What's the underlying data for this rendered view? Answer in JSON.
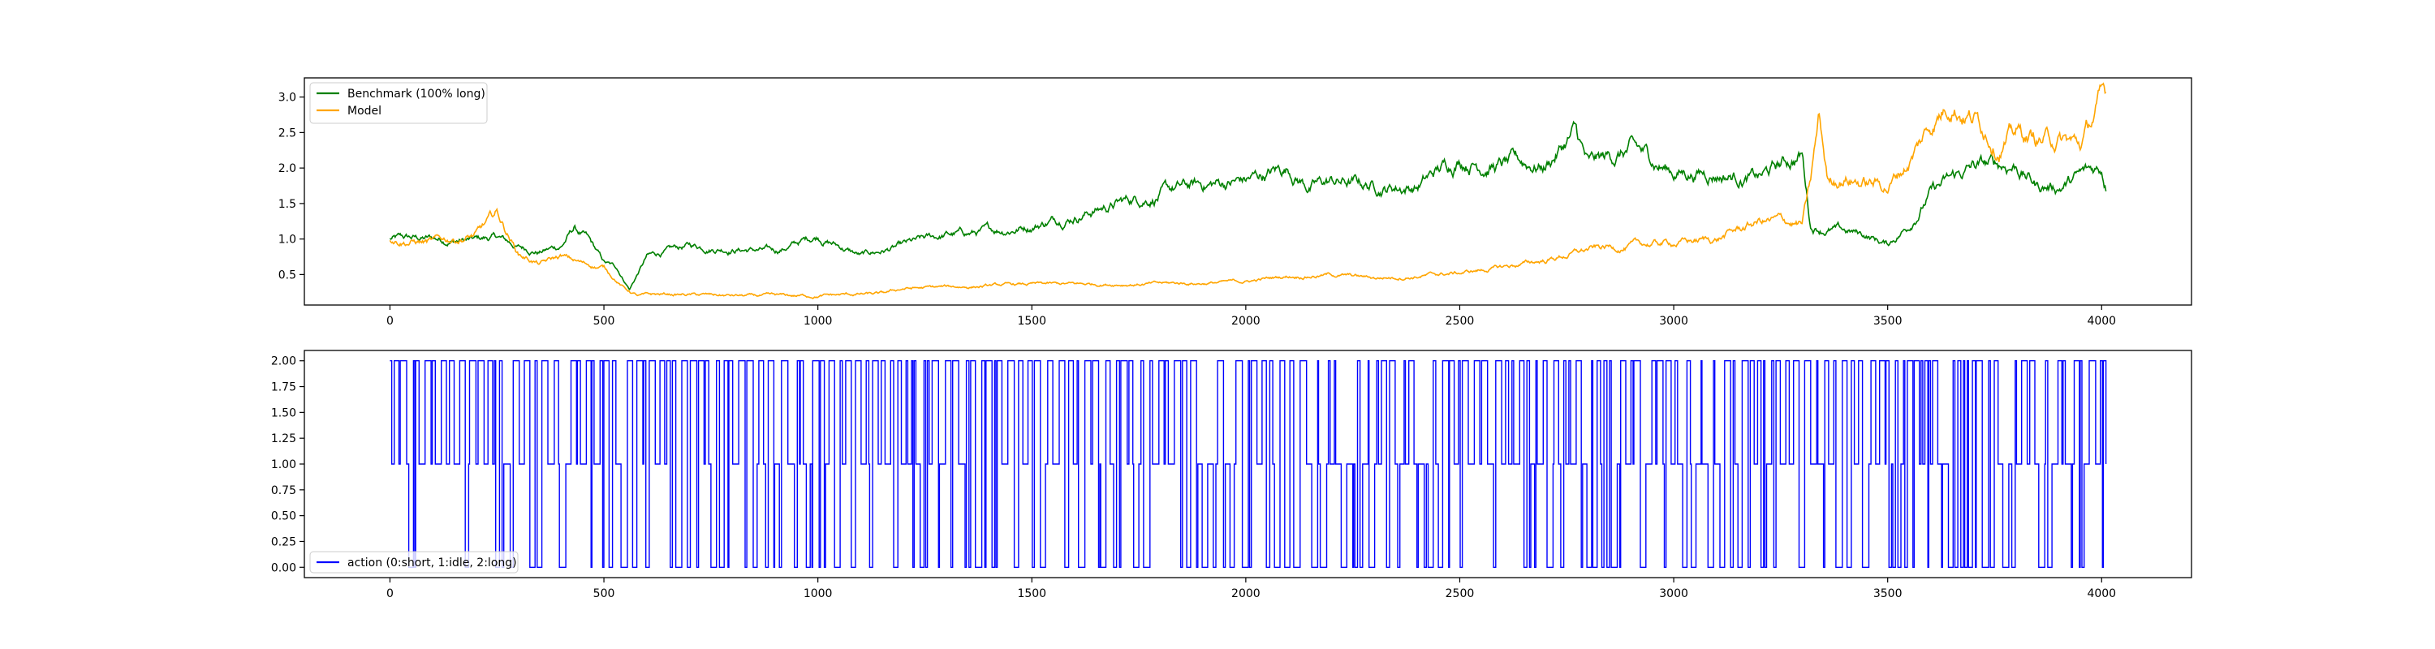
{
  "colors": {
    "benchmark": "#008000",
    "model": "#ffa500",
    "action": "#0000ff",
    "axes": "#000000",
    "legend_border": "#cccccc"
  },
  "chart_data": [
    {
      "type": "line",
      "title": "",
      "xlabel": "",
      "ylabel": "",
      "xlim": [
        -200,
        4210
      ],
      "ylim": [
        0.07,
        3.27
      ],
      "xticks": [
        0,
        500,
        1000,
        1500,
        2000,
        2500,
        3000,
        3500,
        4000
      ],
      "xticklabels": [
        "0",
        "500",
        "1000",
        "1500",
        "2000",
        "2500",
        "3000",
        "3500",
        "4000"
      ],
      "yticks": [
        0.5,
        1.0,
        1.5,
        2.0,
        2.5,
        3.0
      ],
      "yticklabels": [
        "0.5",
        "1.0",
        "1.5",
        "2.0",
        "2.5",
        "3.0"
      ],
      "grid": false,
      "legend_position": "upper-left",
      "series": [
        {
          "name": "Benchmark (100% long)",
          "color": "#008000",
          "x": [
            0,
            100,
            200,
            250,
            300,
            350,
            400,
            430,
            460,
            500,
            530,
            560,
            600,
            700,
            800,
            900,
            1000,
            1100,
            1200,
            1300,
            1400,
            1500,
            1600,
            1700,
            1800,
            1900,
            2000,
            2100,
            2150,
            2200,
            2300,
            2400,
            2500,
            2600,
            2700,
            2770,
            2800,
            2900,
            2950,
            3000,
            3100,
            3200,
            3300,
            3320,
            3400,
            3450,
            3500,
            3550,
            3600,
            3700,
            3800,
            3850,
            3900,
            4000,
            4010
          ],
          "values": [
            1.0,
            1.0,
            0.98,
            1.02,
            0.88,
            0.83,
            0.9,
            1.15,
            1.0,
            0.65,
            0.58,
            0.3,
            0.75,
            0.9,
            0.88,
            0.82,
            1.05,
            0.76,
            0.9,
            1.05,
            1.1,
            1.2,
            1.35,
            1.5,
            1.65,
            1.75,
            1.82,
            2.0,
            1.75,
            1.8,
            1.75,
            1.75,
            2.15,
            2.05,
            2.05,
            2.5,
            2.0,
            2.25,
            2.1,
            1.95,
            1.95,
            1.85,
            2.2,
            1.2,
            1.1,
            1.05,
            0.92,
            1.2,
            1.65,
            2.0,
            2.05,
            1.75,
            1.75,
            2.0,
            1.8
          ]
        },
        {
          "name": "Model",
          "color": "#ffa500",
          "x": [
            0,
            100,
            200,
            250,
            300,
            350,
            400,
            450,
            500,
            550,
            580,
            650,
            800,
            900,
            1000,
            1100,
            1150,
            1200,
            1300,
            1400,
            1500,
            1600,
            1700,
            1800,
            1900,
            2000,
            2100,
            2200,
            2300,
            2400,
            2500,
            2600,
            2700,
            2800,
            2900,
            3000,
            3100,
            3200,
            3250,
            3300,
            3320,
            3340,
            3360,
            3400,
            3450,
            3500,
            3550,
            3600,
            3650,
            3700,
            3760,
            3800,
            3850,
            3900,
            3950,
            4000,
            4010
          ],
          "values": [
            1.0,
            0.95,
            1.05,
            1.35,
            0.8,
            0.65,
            0.75,
            0.65,
            0.6,
            0.3,
            0.2,
            0.22,
            0.2,
            0.19,
            0.2,
            0.22,
            0.22,
            0.3,
            0.32,
            0.34,
            0.36,
            0.36,
            0.37,
            0.37,
            0.38,
            0.4,
            0.48,
            0.5,
            0.45,
            0.48,
            0.52,
            0.6,
            0.7,
            0.85,
            0.9,
            0.95,
            1.0,
            1.25,
            1.25,
            1.2,
            1.8,
            2.7,
            1.8,
            1.9,
            1.8,
            1.75,
            2.1,
            2.6,
            3.0,
            2.75,
            2.4,
            2.5,
            2.4,
            2.4,
            2.3,
            2.95,
            3.0
          ]
        }
      ]
    },
    {
      "type": "line",
      "title": "",
      "xlabel": "",
      "ylabel": "",
      "xlim": [
        -200,
        4210
      ],
      "ylim": [
        -0.1,
        2.1
      ],
      "xticks": [
        0,
        500,
        1000,
        1500,
        2000,
        2500,
        3000,
        3500,
        4000
      ],
      "xticklabels": [
        "0",
        "500",
        "1000",
        "1500",
        "2000",
        "2500",
        "3000",
        "3500",
        "4000"
      ],
      "yticks": [
        0.0,
        0.25,
        0.5,
        0.75,
        1.0,
        1.25,
        1.5,
        1.75,
        2.0
      ],
      "yticklabels": [
        "0.00",
        "0.25",
        "0.50",
        "0.75",
        "1.00",
        "1.25",
        "1.50",
        "1.75",
        "2.00"
      ],
      "grid": false,
      "legend_position": "lower-left",
      "step": true,
      "series": [
        {
          "name": "action (0:short, 1:idle, 2:long)",
          "color": "#0000ff",
          "x_start": 0,
          "x_end": 4010,
          "allowed_values": [
            0,
            1,
            2
          ]
        }
      ]
    }
  ]
}
